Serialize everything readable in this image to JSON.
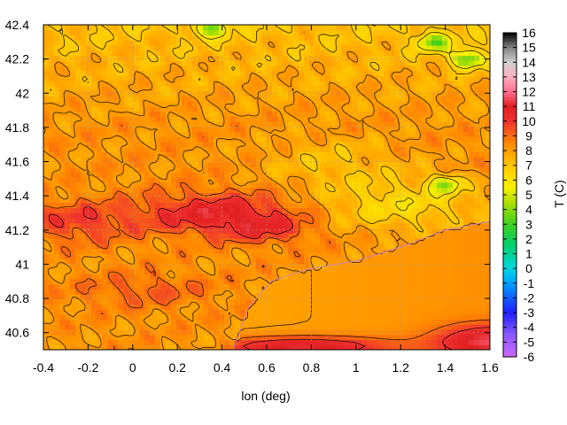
{
  "chart_data": {
    "type": "heatmap",
    "title": "",
    "xlabel": "lon (deg)",
    "ylabel": "",
    "colorbar_label": "T (C)",
    "xlim": [
      -0.4,
      1.6
    ],
    "ylim": [
      40.5,
      42.4
    ],
    "x_ticks": [
      "-0.4",
      "-0.2",
      "0",
      "0.2",
      "0.4",
      "0.6",
      "0.8",
      "1",
      "1.2",
      "1.4",
      "1.6"
    ],
    "y_ticks": [
      "40.6",
      "40.8",
      "41",
      "41.2",
      "41.4",
      "41.6",
      "41.8",
      "42",
      "42.2",
      "42.4"
    ],
    "colorbar_range": [
      -6,
      16
    ],
    "colorbar_ticks": [
      "16",
      "15",
      "14",
      "13",
      "12",
      "11",
      "10",
      "9",
      "8",
      "7",
      "6",
      "5",
      "4",
      "3",
      "2",
      "1",
      "0",
      "-1",
      "-2",
      "-3",
      "-4",
      "-5",
      "-6"
    ],
    "grid": true,
    "features": {
      "hot_core": {
        "lon": 0.38,
        "lat": 41.3,
        "temp": 10.5
      },
      "sea_area": {
        "temp": 8.0,
        "coast_points": [
          [
            0.45,
            40.5
          ],
          [
            0.52,
            40.75
          ],
          [
            0.62,
            40.9
          ],
          [
            0.78,
            40.97
          ],
          [
            1.0,
            41.02
          ],
          [
            1.2,
            41.1
          ],
          [
            1.4,
            41.2
          ],
          [
            1.6,
            41.25
          ]
        ]
      },
      "cool_spots": [
        {
          "lon": 1.35,
          "lat": 42.3,
          "temp": 4.0
        },
        {
          "lon": 1.5,
          "lat": 42.2,
          "temp": 3.5
        },
        {
          "lon": 0.35,
          "lat": 42.38,
          "temp": 4.5
        },
        {
          "lon": 1.4,
          "lat": 41.47,
          "temp": 4.5
        }
      ]
    },
    "colorscale": [
      {
        "t": -6,
        "color": "#cc66ff"
      },
      {
        "t": -4.5,
        "color": "#8a5aff"
      },
      {
        "t": -3,
        "color": "#2020ff"
      },
      {
        "t": -1,
        "color": "#00a0ff"
      },
      {
        "t": 0,
        "color": "#00d8e0"
      },
      {
        "t": 1.5,
        "color": "#00d070"
      },
      {
        "t": 3,
        "color": "#40d020"
      },
      {
        "t": 4.5,
        "color": "#b0e000"
      },
      {
        "t": 5.5,
        "color": "#f8f000"
      },
      {
        "t": 7,
        "color": "#ffc800"
      },
      {
        "t": 8.5,
        "color": "#ff8800"
      },
      {
        "t": 10,
        "color": "#f03030"
      },
      {
        "t": 11,
        "color": "#e02020"
      },
      {
        "t": 12,
        "color": "#ff6f8f"
      },
      {
        "t": 13,
        "color": "#ffb0c0"
      },
      {
        "t": 14,
        "color": "#d0d0d0"
      },
      {
        "t": 15,
        "color": "#808080"
      },
      {
        "t": 16,
        "color": "#000000"
      }
    ]
  }
}
